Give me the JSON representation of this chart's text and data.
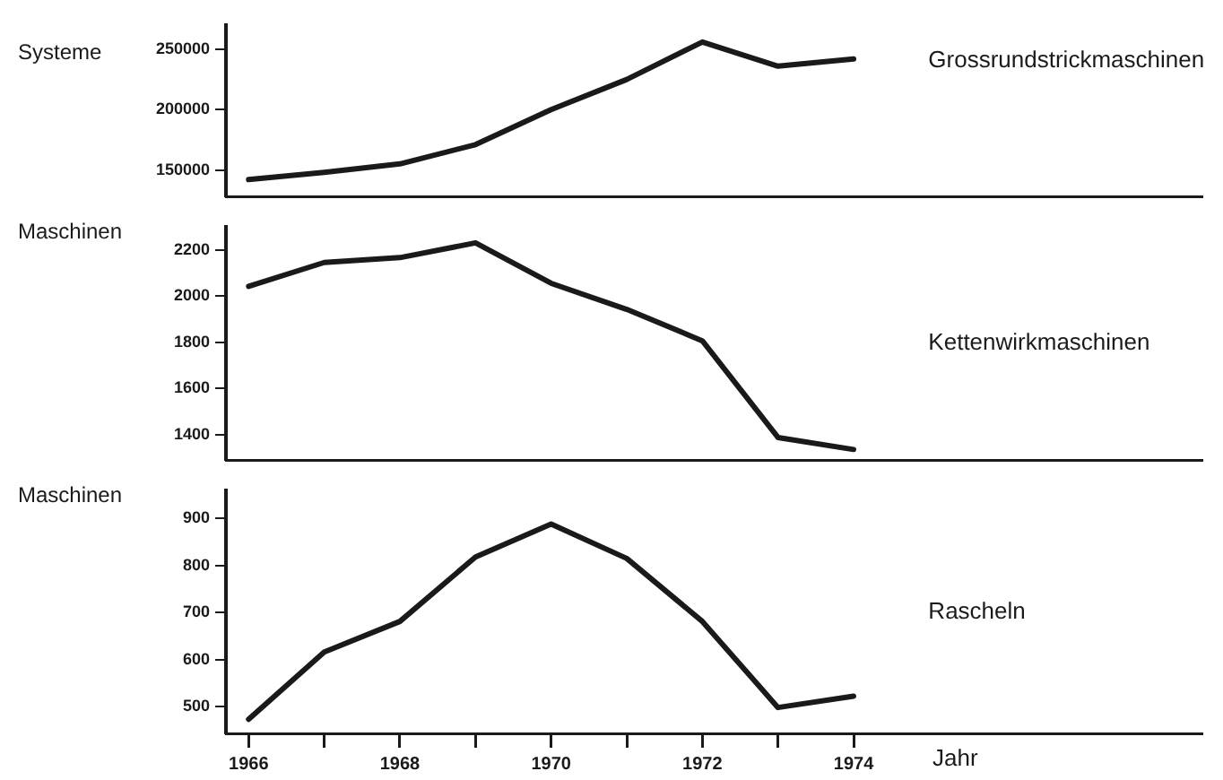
{
  "chart_data": [
    {
      "type": "line",
      "ylabel": "Systeme",
      "x": [
        1966,
        1967,
        1968,
        1969,
        1970,
        1971,
        1972,
        1973,
        1974
      ],
      "series": [
        {
          "name": "Grossrundstrickmaschinen",
          "color": "#1a1a1a",
          "values": [
            142000,
            148000,
            155000,
            171000,
            200000,
            225000,
            256000,
            236000,
            242000
          ]
        }
      ],
      "xlim": [
        1965.7,
        1978.6
      ],
      "ylim": [
        128000,
        270000
      ],
      "yticks": [
        150000,
        200000,
        250000
      ],
      "tick_labels": "y",
      "grid": false,
      "legend": false,
      "marker": "none",
      "line_style": "solid"
    },
    {
      "type": "line",
      "ylabel": "Maschinen",
      "x": [
        1966,
        1967,
        1968,
        1969,
        1970,
        1971,
        1972,
        1973,
        1974
      ],
      "series": [
        {
          "name": "Kettenwirkmaschinen",
          "color": "#1a1a1a",
          "values": [
            2042,
            2145,
            2166,
            2230,
            2055,
            1942,
            1806,
            1388,
            1336
          ]
        }
      ],
      "xlim": [
        1965.7,
        1978.6
      ],
      "ylim": [
        1290,
        2300
      ],
      "yticks": [
        1400,
        1600,
        1800,
        2000,
        2200
      ],
      "tick_labels": "y",
      "grid": false,
      "legend": false,
      "marker": "none",
      "line_style": "solid"
    },
    {
      "type": "line",
      "ylabel": "Maschinen",
      "xlabel": "Jahr",
      "x": [
        1966,
        1967,
        1968,
        1969,
        1970,
        1971,
        1972,
        1973,
        1974
      ],
      "series": [
        {
          "name": "Rascheln",
          "color": "#1a1a1a",
          "values": [
            473,
            616,
            681,
            818,
            888,
            815,
            681,
            498,
            522
          ]
        }
      ],
      "xlim": [
        1965.7,
        1978.6
      ],
      "xticks": [
        1966,
        {
          "value": 1967,
          "label": null
        },
        1968,
        {
          "value": 1969,
          "label": null
        },
        1970,
        {
          "value": 1971,
          "label": null
        },
        1972,
        {
          "value": 1973,
          "label": null
        },
        1974
      ],
      "ylim": [
        443,
        960
      ],
      "yticks": [
        500,
        600,
        700,
        800,
        900
      ],
      "grid": false,
      "legend": false,
      "marker": "none",
      "line_style": "solid"
    }
  ]
}
